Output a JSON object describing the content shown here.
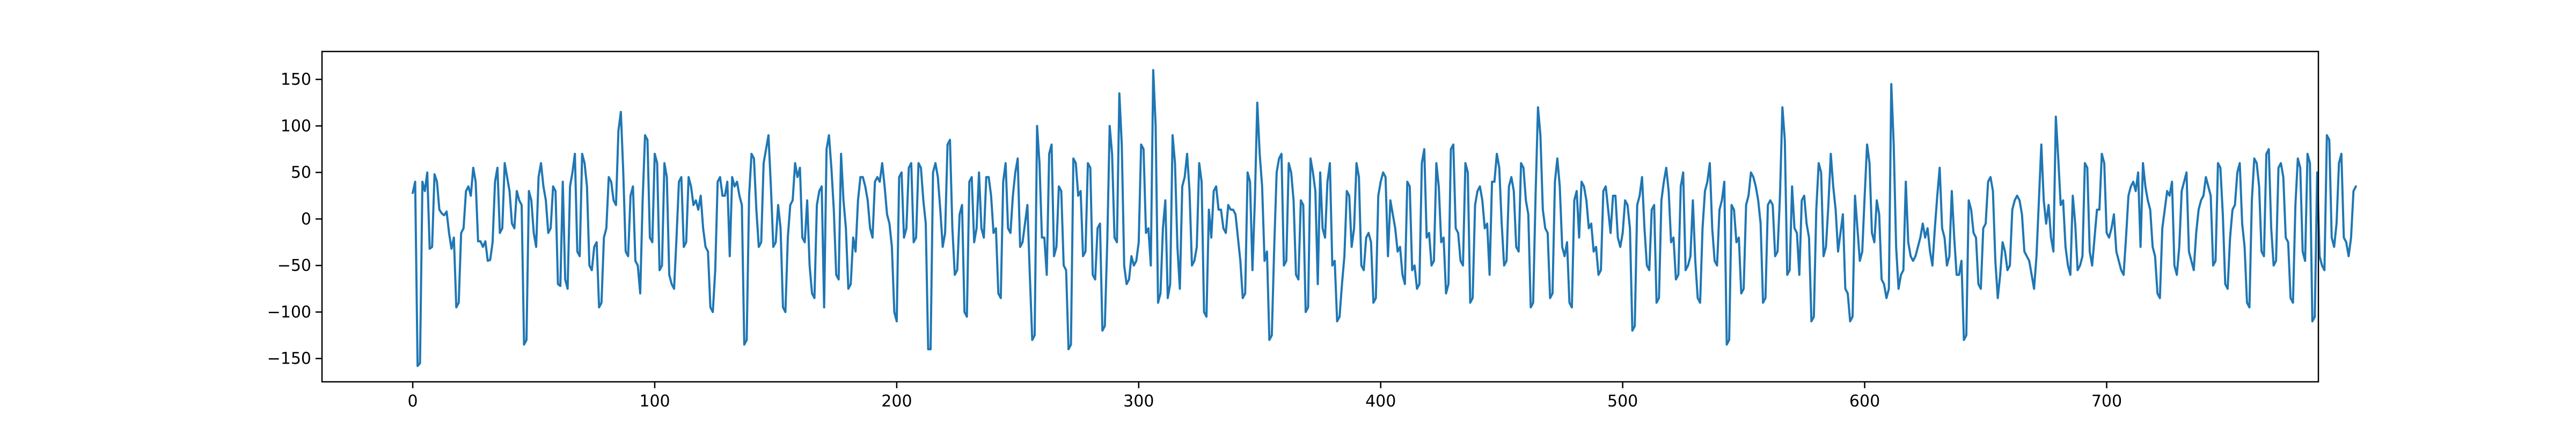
{
  "chart_data": {
    "type": "line",
    "title": "",
    "xlabel": "",
    "ylabel": "",
    "xlim": [
      -37.5,
      787.5
    ],
    "ylim": [
      -175,
      180
    ],
    "grid": false,
    "legend": "none",
    "x_ticks": [
      0,
      100,
      200,
      300,
      400,
      500,
      600,
      700
    ],
    "y_ticks": [
      -150,
      -100,
      -50,
      0,
      50,
      100,
      150
    ],
    "series": [
      {
        "color": "#1f77b4",
        "x_start": 0,
        "x_step": 1,
        "values": [
          28,
          40,
          -158,
          -155,
          40,
          30,
          50,
          -32,
          -30,
          48,
          40,
          10,
          6,
          4,
          8,
          -15,
          -32,
          -20,
          -95,
          -90,
          -15,
          -10,
          30,
          35,
          25,
          55,
          40,
          -24,
          -24,
          -30,
          -24,
          -45,
          -44,
          -25,
          40,
          55,
          -15,
          -10,
          60,
          45,
          30,
          -5,
          -10,
          30,
          20,
          15,
          -135,
          -130,
          30,
          20,
          -15,
          -30,
          45,
          60,
          35,
          20,
          -15,
          -10,
          35,
          30,
          -70,
          -72,
          40,
          -65,
          -75,
          35,
          50,
          70,
          -35,
          -40,
          70,
          60,
          35,
          -50,
          -55,
          -30,
          -25,
          -95,
          -90,
          -20,
          -10,
          45,
          40,
          20,
          15,
          95,
          115,
          50,
          -35,
          -40,
          25,
          35,
          -45,
          -50,
          -80,
          20,
          90,
          85,
          -20,
          -25,
          70,
          60,
          -55,
          -50,
          60,
          45,
          -60,
          -70,
          -75,
          -20,
          40,
          45,
          -30,
          -25,
          45,
          35,
          15,
          20,
          10,
          25,
          -10,
          -30,
          -35,
          -95,
          -100,
          -55,
          40,
          45,
          25,
          25,
          40,
          -40,
          45,
          35,
          40,
          25,
          15,
          -135,
          -130,
          25,
          70,
          65,
          10,
          -30,
          -25,
          60,
          75,
          90,
          35,
          -30,
          -25,
          15,
          -10,
          -95,
          -100,
          -20,
          15,
          20,
          60,
          45,
          55,
          -20,
          -25,
          20,
          -50,
          -80,
          -85,
          15,
          30,
          35,
          -95,
          75,
          90,
          55,
          10,
          -60,
          -65,
          70,
          20,
          -10,
          -75,
          -70,
          -20,
          -35,
          20,
          45,
          45,
          35,
          20,
          -10,
          -20,
          40,
          45,
          40,
          60,
          35,
          5,
          -5,
          -30,
          -100,
          -110,
          45,
          50,
          -20,
          -10,
          55,
          60,
          -25,
          -20,
          60,
          55,
          20,
          -5,
          -140,
          -140,
          50,
          60,
          45,
          10,
          -30,
          -15,
          80,
          85,
          -10,
          -60,
          -55,
          5,
          15,
          -100,
          -105,
          40,
          45,
          -25,
          -10,
          50,
          -10,
          -20,
          45,
          45,
          25,
          -15,
          -10,
          -80,
          -85,
          40,
          60,
          -10,
          -15,
          25,
          50,
          65,
          -30,
          -25,
          -5,
          15,
          -60,
          -130,
          -125,
          100,
          60,
          -20,
          -20,
          -60,
          70,
          80,
          -40,
          -30,
          35,
          30,
          -50,
          -55,
          -140,
          -135,
          65,
          60,
          25,
          30,
          -40,
          -35,
          60,
          55,
          -60,
          -65,
          -10,
          -5,
          -120,
          -115,
          -25,
          100,
          70,
          -20,
          -25,
          135,
          80,
          -50,
          -70,
          -65,
          -40,
          -50,
          -45,
          -25,
          80,
          75,
          -15,
          -10,
          -50,
          160,
          100,
          -90,
          -80,
          -10,
          20,
          -85,
          -70,
          90,
          60,
          -30,
          -75,
          35,
          45,
          70,
          30,
          -50,
          -45,
          -30,
          60,
          40,
          -100,
          -105,
          10,
          -20,
          30,
          35,
          10,
          10,
          -10,
          -15,
          15,
          10,
          10,
          5,
          -20,
          -45,
          -85,
          -80,
          50,
          40,
          -55,
          20,
          125,
          70,
          35,
          -45,
          -35,
          -130,
          -125,
          -30,
          50,
          65,
          70,
          -50,
          -45,
          60,
          50,
          20,
          -60,
          -65,
          20,
          15,
          -100,
          -95,
          65,
          50,
          30,
          -70,
          50,
          -10,
          -20,
          40,
          60,
          -50,
          -45,
          -110,
          -105,
          -70,
          -40,
          30,
          25,
          -30,
          -10,
          60,
          45,
          -50,
          -55,
          -20,
          -15,
          -25,
          -90,
          -85,
          25,
          40,
          50,
          45,
          -40,
          20,
          5,
          -10,
          -35,
          -30,
          -60,
          -70,
          40,
          35,
          -55,
          -50,
          -75,
          -70,
          60,
          75,
          -20,
          -15,
          -50,
          -45,
          60,
          35,
          -25,
          -20,
          -80,
          -70,
          75,
          80,
          -10,
          -15,
          -45,
          -50,
          60,
          50,
          -90,
          -85,
          15,
          30,
          35,
          20,
          -10,
          -5,
          -60,
          40,
          40,
          70,
          55,
          -5,
          -50,
          -45,
          35,
          45,
          30,
          -30,
          -35,
          60,
          55,
          20,
          5,
          -95,
          -90,
          25,
          120,
          90,
          10,
          -10,
          -15,
          -85,
          -80,
          40,
          65,
          35,
          -30,
          -40,
          -25,
          -90,
          -95,
          20,
          30,
          -20,
          40,
          35,
          20,
          -10,
          -5,
          -35,
          -30,
          -60,
          -55,
          30,
          35,
          10,
          -15,
          25,
          25,
          -20,
          -30,
          -15,
          20,
          15,
          -10,
          -120,
          -115,
          15,
          25,
          45,
          -10,
          -50,
          -55,
          10,
          15,
          -90,
          -85,
          20,
          40,
          55,
          30,
          -25,
          -20,
          -65,
          -60,
          35,
          50,
          -55,
          -50,
          -40,
          20,
          -45,
          -85,
          -90,
          -10,
          30,
          40,
          60,
          -10,
          -45,
          -50,
          10,
          20,
          40,
          -135,
          -130,
          15,
          10,
          -25,
          -20,
          -80,
          -75,
          15,
          25,
          50,
          45,
          35,
          20,
          -5,
          -90,
          -85,
          15,
          20,
          15,
          -40,
          -35,
          25,
          120,
          85,
          -60,
          -55,
          35,
          -10,
          -15,
          -60,
          20,
          25,
          -5,
          -20,
          -110,
          -105,
          10,
          60,
          50,
          -40,
          -30,
          15,
          70,
          35,
          10,
          -35,
          -15,
          5,
          -75,
          -80,
          -110,
          -105,
          25,
          -10,
          -45,
          -35,
          25,
          80,
          60,
          -15,
          -25,
          20,
          5,
          -65,
          -70,
          -85,
          -75,
          145,
          80,
          -30,
          -75,
          -60,
          -55,
          40,
          -25,
          -40,
          -45,
          -40,
          -30,
          -20,
          -5,
          -20,
          -10,
          -35,
          -50,
          -10,
          25,
          55,
          -10,
          -20,
          -50,
          -40,
          30,
          -20,
          -60,
          -60,
          -45,
          -130,
          -125,
          20,
          10,
          -15,
          -20,
          -70,
          -75,
          -10,
          -5,
          40,
          45,
          30,
          -45,
          -85,
          -60,
          -25,
          -35,
          -55,
          -50,
          10,
          20,
          25,
          20,
          5,
          -35,
          -40,
          -45,
          -60,
          -75,
          -40,
          20,
          80,
          20,
          -5,
          15,
          -20,
          -35,
          110,
          65,
          15,
          20,
          -30,
          -50,
          -60,
          25,
          -5,
          -55,
          -50,
          -40,
          60,
          55,
          -35,
          -50,
          -20,
          10,
          10,
          70,
          60,
          -15,
          -20,
          -10,
          5,
          -35,
          -45,
          -55,
          -60,
          -20,
          25,
          35,
          40,
          30,
          50,
          -30,
          60,
          35,
          20,
          10,
          -30,
          -40,
          -80,
          -85,
          -10,
          10,
          30,
          25,
          40,
          -50,
          -60,
          -30,
          30,
          40,
          50,
          -35,
          -45,
          -55,
          -15,
          10,
          20,
          25,
          45,
          35,
          25,
          -50,
          -45,
          60,
          55,
          5,
          -70,
          -75,
          -20,
          10,
          15,
          50,
          60,
          -5,
          -30,
          -90,
          -95,
          20,
          65,
          60,
          35,
          -35,
          -40,
          70,
          75,
          -10,
          -50,
          -45,
          55,
          60,
          45,
          -20,
          -25,
          -85,
          -90,
          15,
          65,
          55,
          -35,
          -45,
          70,
          60,
          -110,
          -105,
          50,
          -40,
          -50,
          -55,
          90,
          85,
          -20,
          -30,
          -5,
          60,
          70,
          -20,
          -25,
          -40,
          -20,
          30,
          35
        ]
      }
    ]
  }
}
